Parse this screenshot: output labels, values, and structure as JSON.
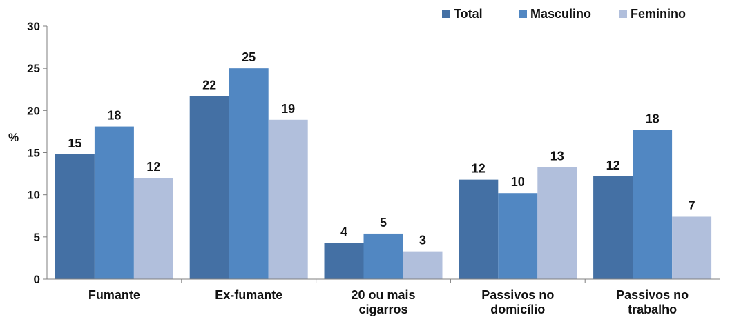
{
  "chart_data": {
    "type": "bar",
    "categories": [
      [
        "Fumante"
      ],
      [
        "Ex-fumante"
      ],
      [
        "20 ou mais",
        "cigarros"
      ],
      [
        "Passivos no",
        "domicílio"
      ],
      [
        "Passivos no",
        "trabalho"
      ]
    ],
    "series": [
      {
        "name": "Total",
        "color": "#4470a4",
        "values": [
          14.8,
          21.7,
          4.3,
          11.8,
          12.2
        ],
        "labels": [
          "15",
          "22",
          "4",
          "12",
          "12"
        ]
      },
      {
        "name": "Masculino",
        "color": "#5187c2",
        "values": [
          18.1,
          25.0,
          5.4,
          10.2,
          17.7
        ],
        "labels": [
          "18",
          "25",
          "5",
          "10",
          "18"
        ]
      },
      {
        "name": "Feminino",
        "color": "#b1bfdc",
        "values": [
          12.0,
          18.9,
          3.3,
          13.3,
          7.4
        ],
        "labels": [
          "12",
          "19",
          "3",
          "13",
          "7"
        ]
      }
    ],
    "ylabel": "%",
    "ylim": [
      0,
      30
    ],
    "yticks": [
      0,
      5,
      10,
      15,
      20,
      25,
      30
    ],
    "grid": false,
    "legend_position": "top-right"
  }
}
